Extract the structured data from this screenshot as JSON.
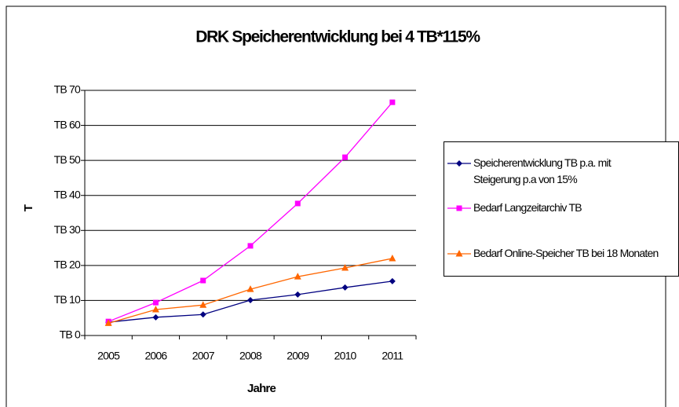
{
  "chart_data": {
    "type": "line",
    "title": "DRK Speicherentwicklung bei 4 TB*115%",
    "x_label": "Jahre",
    "y_label": "T",
    "categories": [
      "2005",
      "2006",
      "2007",
      "2008",
      "2009",
      "2010",
      "2011"
    ],
    "series": [
      {
        "name": "Speicherentwicklung TB p.a. mit Steigerung p.a von 15%",
        "color": "#000080",
        "marker": "diamond",
        "values": [
          3.8,
          5.2,
          6.0,
          10.1,
          11.7,
          13.7,
          15.5
        ]
      },
      {
        "name": "Bedarf Langzeitarchiv TB",
        "color": "#ff00ff",
        "marker": "square",
        "values": [
          4.0,
          9.4,
          15.7,
          25.6,
          37.7,
          50.9,
          66.6
        ]
      },
      {
        "name": "Bedarf Online-Speicher TB bei 18 Monaten",
        "color": "#ff6600",
        "marker": "triangle",
        "values": [
          3.5,
          7.4,
          8.7,
          13.2,
          16.8,
          19.3,
          22.0
        ]
      }
    ],
    "ylim": [
      0,
      70
    ],
    "yticks": [
      {
        "value": 0,
        "label": "TB 0"
      },
      {
        "value": 10,
        "label": "TB 10"
      },
      {
        "value": 20,
        "label": "TB 20"
      },
      {
        "value": 30,
        "label": "TB 30"
      },
      {
        "value": 40,
        "label": "TB 40"
      },
      {
        "value": 50,
        "label": "TB 50"
      },
      {
        "value": 60,
        "label": "TB 60"
      },
      {
        "value": 70,
        "label": "TB 70"
      }
    ],
    "grid": true,
    "legend": "right"
  }
}
